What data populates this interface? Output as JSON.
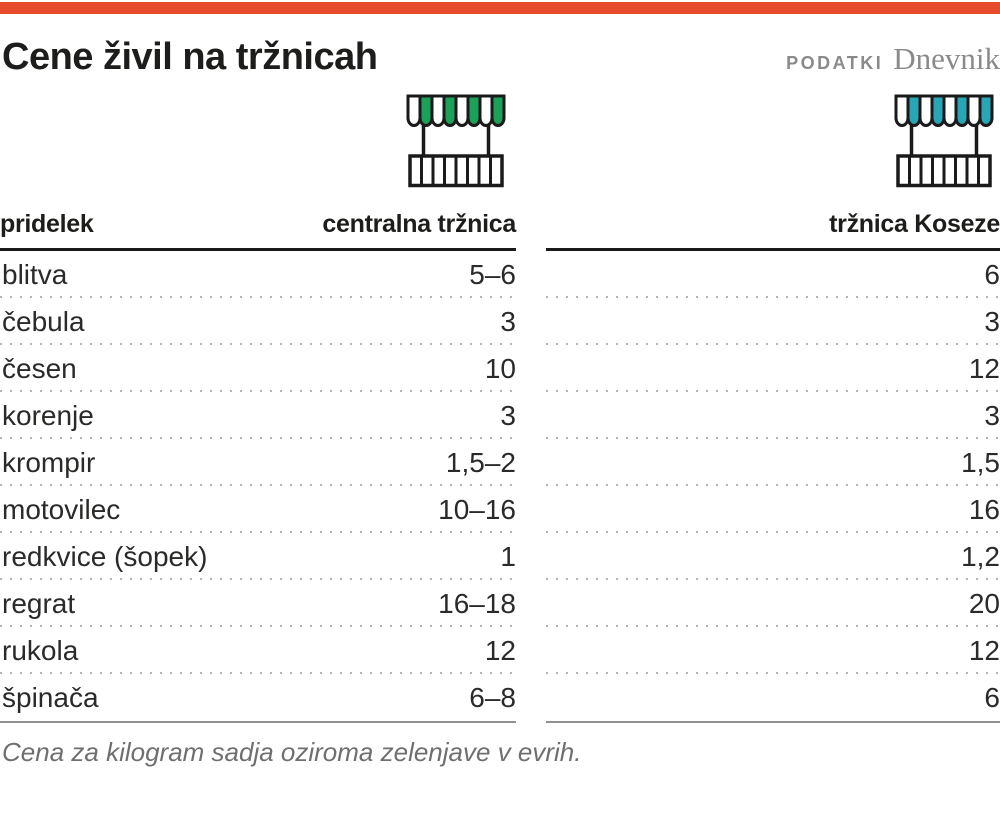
{
  "header": {
    "title": "Cene živil na tržnicah",
    "brand_small": "PODATKI",
    "brand_name": "Dnevnik"
  },
  "icons": {
    "central": "market-stall-green-icon",
    "koseze": "market-stall-teal-icon"
  },
  "colors": {
    "accent": "#e84b2c",
    "green": "#1ba158",
    "teal": "#28a6b6",
    "rule-dark": "#1a1a1a",
    "rule-gray": "#8f8f8f",
    "dot": "#b4b4b4",
    "muted": "#8a8a8a"
  },
  "chart_data": {
    "type": "table",
    "title": "Cene živil na tržnicah",
    "columns": [
      "pridelek",
      "centralna tržnica",
      "tržnica Koseze"
    ],
    "rows": [
      [
        "blitva",
        "5–6",
        "6"
      ],
      [
        "čebula",
        "3",
        "3"
      ],
      [
        "česen",
        "10",
        "12"
      ],
      [
        "korenje",
        "3",
        "3"
      ],
      [
        "krompir",
        "1,5–2",
        "1,5"
      ],
      [
        "motovilec",
        "10–16",
        "16"
      ],
      [
        "redkvice (šopek)",
        "1",
        "1,2"
      ],
      [
        "regrat",
        "16–18",
        "20"
      ],
      [
        "rukola",
        "12",
        "12"
      ],
      [
        "špinača",
        "6–8",
        "6"
      ]
    ],
    "note": "Cena za kilogram sadja oziroma zelenjave v evrih."
  }
}
